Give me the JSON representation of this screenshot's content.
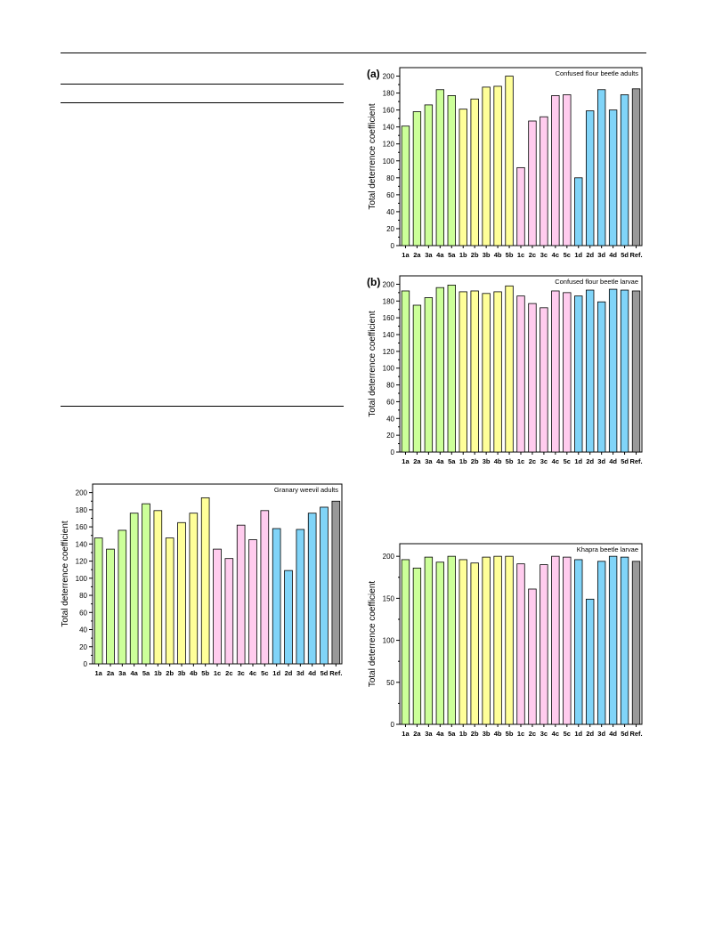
{
  "colors": {
    "green": "#ccff99",
    "yellow": "#ffff99",
    "pink": "#ffccee",
    "blue": "#80d4f8",
    "gray": "#999999"
  },
  "chart_data": [
    {
      "id": "a",
      "type": "bar",
      "panel_label": "(a)",
      "title": "Confused flour beetle adults",
      "ylabel": "Total deterrence coefficient",
      "xlabel": "",
      "ylim": [
        0,
        210
      ],
      "yticks": [
        0,
        20,
        40,
        60,
        80,
        100,
        120,
        140,
        160,
        180,
        200
      ],
      "grid": false,
      "categories": [
        "1a",
        "2a",
        "3a",
        "4a",
        "5a",
        "1b",
        "2b",
        "3b",
        "4b",
        "5b",
        "1c",
        "2c",
        "3c",
        "4c",
        "5c",
        "1d",
        "2d",
        "3d",
        "4d",
        "5d",
        "Ref."
      ],
      "values": [
        141,
        158,
        166,
        184,
        177,
        161,
        173,
        187,
        188,
        200,
        92,
        147,
        152,
        177,
        178,
        80,
        159,
        184,
        160,
        178,
        185
      ],
      "bar_colors": [
        "green",
        "green",
        "green",
        "green",
        "green",
        "yellow",
        "yellow",
        "yellow",
        "yellow",
        "yellow",
        "pink",
        "pink",
        "pink",
        "pink",
        "pink",
        "blue",
        "blue",
        "blue",
        "blue",
        "blue",
        "gray"
      ]
    },
    {
      "id": "b",
      "type": "bar",
      "panel_label": "(b)",
      "title": "Confused flour beetle larvae",
      "ylabel": "Total deterrence coefficient",
      "xlabel": "",
      "ylim": [
        0,
        210
      ],
      "yticks": [
        0,
        20,
        40,
        60,
        80,
        100,
        120,
        140,
        160,
        180,
        200
      ],
      "grid": false,
      "categories": [
        "1a",
        "2a",
        "3a",
        "4a",
        "5a",
        "1b",
        "2b",
        "3b",
        "4b",
        "5b",
        "1c",
        "2c",
        "3c",
        "4c",
        "5c",
        "1d",
        "2d",
        "3d",
        "4d",
        "5d",
        "Ref."
      ],
      "values": [
        192,
        175,
        184,
        196,
        199,
        191,
        192,
        189,
        191,
        198,
        186,
        177,
        172,
        192,
        190,
        186,
        193,
        179,
        194,
        193,
        192
      ],
      "bar_colors": [
        "green",
        "green",
        "green",
        "green",
        "green",
        "yellow",
        "yellow",
        "yellow",
        "yellow",
        "yellow",
        "pink",
        "pink",
        "pink",
        "pink",
        "pink",
        "blue",
        "blue",
        "blue",
        "blue",
        "blue",
        "gray"
      ]
    },
    {
      "id": "c",
      "type": "bar",
      "panel_label": "",
      "title": "Granary weevil adults",
      "ylabel": "Total deterrence coefficient",
      "xlabel": "",
      "ylim": [
        0,
        210
      ],
      "yticks": [
        0,
        20,
        40,
        60,
        80,
        100,
        120,
        140,
        160,
        180,
        200
      ],
      "grid": false,
      "categories": [
        "1a",
        "2a",
        "3a",
        "4a",
        "5a",
        "1b",
        "2b",
        "3b",
        "4b",
        "5b",
        "1c",
        "2c",
        "3c",
        "4c",
        "5c",
        "1d",
        "2d",
        "3d",
        "4d",
        "5d",
        "Ref."
      ],
      "values": [
        147,
        134,
        156,
        176,
        187,
        179,
        147,
        165,
        176,
        194,
        134,
        123,
        162,
        145,
        179,
        158,
        109,
        157,
        176,
        183,
        190
      ],
      "bar_colors": [
        "green",
        "green",
        "green",
        "green",
        "green",
        "yellow",
        "yellow",
        "yellow",
        "yellow",
        "yellow",
        "pink",
        "pink",
        "pink",
        "pink",
        "pink",
        "blue",
        "blue",
        "blue",
        "blue",
        "blue",
        "gray"
      ]
    },
    {
      "id": "d",
      "type": "bar",
      "panel_label": "",
      "title": "Khapra beetle larvae",
      "ylabel": "Total deterrence coefficient",
      "xlabel": "",
      "ylim": [
        0,
        215
      ],
      "yticks": [
        0,
        50,
        100,
        150,
        200
      ],
      "grid": false,
      "categories": [
        "1a",
        "2a",
        "3a",
        "4a",
        "5a",
        "1b",
        "2b",
        "3b",
        "4b",
        "5b",
        "1c",
        "2c",
        "3c",
        "4c",
        "5c",
        "1d",
        "2d",
        "3d",
        "4d",
        "5d",
        "Ref."
      ],
      "values": [
        196,
        186,
        199,
        193,
        200,
        196,
        192,
        199,
        200,
        200,
        191,
        161,
        190,
        200,
        199,
        196,
        149,
        194,
        200,
        199,
        194
      ],
      "bar_colors": [
        "green",
        "green",
        "green",
        "green",
        "green",
        "yellow",
        "yellow",
        "yellow",
        "yellow",
        "yellow",
        "pink",
        "pink",
        "pink",
        "pink",
        "pink",
        "blue",
        "blue",
        "blue",
        "blue",
        "blue",
        "gray"
      ]
    }
  ]
}
